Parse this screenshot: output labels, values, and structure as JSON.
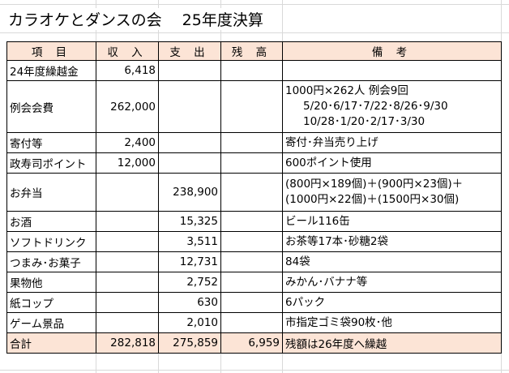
{
  "title": "カラオケとダンスの会　 25年度決算",
  "header": {
    "item": "項 目",
    "income": "収 入",
    "expense": "支 出",
    "balance": "残 高",
    "notes": "備 考"
  },
  "rows": [
    {
      "item": "24年度繰越金",
      "income": "6,418",
      "expense": "",
      "balance": "",
      "notes": [
        ""
      ]
    },
    {
      "item": "例会会費",
      "income": "262,000",
      "expense": "",
      "balance": "",
      "notes": [
        "1000円×262人 例会9回",
        "5/20･6/17･7/22･8/26･9/30",
        "10/28･1/20･2/17･3/30"
      ]
    },
    {
      "item": "寄付等",
      "income": "2,400",
      "expense": "",
      "balance": "",
      "notes": [
        "寄付･弁当売り上げ"
      ]
    },
    {
      "item": "政寿司ポイント",
      "income": "12,000",
      "expense": "",
      "balance": "",
      "notes": [
        "600ポイント使用"
      ]
    },
    {
      "item": "お弁当",
      "income": "",
      "expense": "238,900",
      "balance": "",
      "notes": [
        "(800円×189個)＋(900円×23個)＋",
        "(1000円×22個)＋(1500円×30個)"
      ]
    },
    {
      "item": "お酒",
      "income": "",
      "expense": "15,325",
      "balance": "",
      "notes": [
        "ビール116缶"
      ]
    },
    {
      "item": "ソフトドリンク",
      "income": "",
      "expense": "3,511",
      "balance": "",
      "notes": [
        "お茶等17本･砂糖2袋"
      ]
    },
    {
      "item": "つまみ･お菓子",
      "income": "",
      "expense": "12,731",
      "balance": "",
      "notes": [
        "84袋"
      ]
    },
    {
      "item": "果物他",
      "income": "",
      "expense": "2,752",
      "balance": "",
      "notes": [
        "みかん･バナナ等"
      ]
    },
    {
      "item": "紙コップ",
      "income": "",
      "expense": "630",
      "balance": "",
      "notes": [
        "6パック"
      ]
    },
    {
      "item": "ゲーム景品",
      "income": "",
      "expense": "2,010",
      "balance": "",
      "notes": [
        "市指定ゴミ袋90枚･他"
      ]
    }
  ],
  "total": {
    "item": "合計",
    "income": "282,818",
    "expense": "275,859",
    "balance": "6,959",
    "notes": "残額は26年度へ繰越"
  },
  "colors": {
    "header_fill": "#fce4d6",
    "gridline": "#d9d9d9"
  }
}
